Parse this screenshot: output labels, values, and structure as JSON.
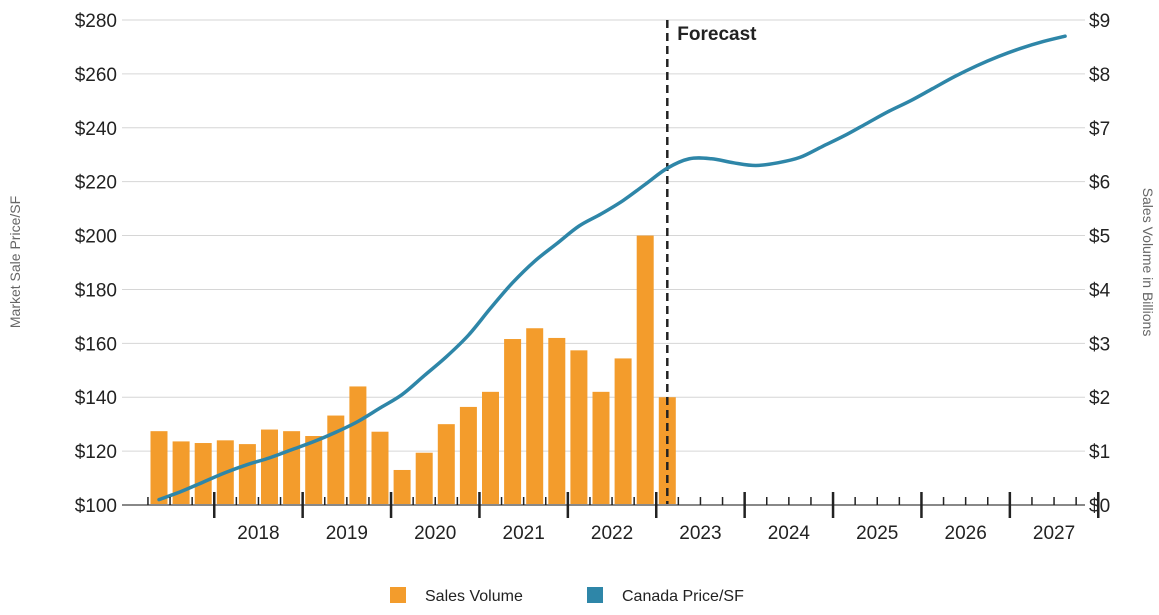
{
  "chart_data": {
    "type": "bar+line",
    "title": "",
    "left_axis": {
      "label": "Market Sale Price/SF",
      "range": [
        100,
        280
      ],
      "ticks": [
        100,
        120,
        140,
        160,
        180,
        200,
        220,
        240,
        260,
        280
      ],
      "tick_labels": [
        "$100",
        "$120",
        "$140",
        "$160",
        "$180",
        "$200",
        "$220",
        "$240",
        "$260",
        "$280"
      ]
    },
    "right_axis": {
      "label": "Sales Volume in Billions",
      "range": [
        0,
        9
      ],
      "ticks": [
        0,
        1,
        2,
        3,
        4,
        5,
        6,
        7,
        8,
        9
      ],
      "tick_labels": [
        "$0",
        "$1",
        "$2",
        "$3",
        "$4",
        "$5",
        "$6",
        "$7",
        "$8",
        "$9"
      ]
    },
    "x_axis": {
      "year_labels": [
        "2018",
        "2019",
        "2020",
        "2021",
        "2022",
        "2023",
        "2024",
        "2025",
        "2026",
        "2027"
      ]
    },
    "grid": true,
    "forecast": {
      "label": "Forecast",
      "starts_at": "2023 Q1"
    },
    "legend": {
      "position": "bottom",
      "items": [
        {
          "name": "Sales Volume",
          "color": "#F39C2C"
        },
        {
          "name": "Canada Price/SF",
          "color": "#2E86A8"
        }
      ]
    },
    "series": [
      {
        "name": "Sales Volume",
        "type": "bar",
        "axis": "right",
        "unit": "billions",
        "color": "#F39C2C",
        "quarters": [
          "2017 Q2",
          "2017 Q3",
          "2017 Q4",
          "2018 Q1",
          "2018 Q2",
          "2018 Q3",
          "2018 Q4",
          "2019 Q1",
          "2019 Q2",
          "2019 Q3",
          "2019 Q4",
          "2020 Q1",
          "2020 Q2",
          "2020 Q3",
          "2020 Q4",
          "2021 Q1",
          "2021 Q2",
          "2021 Q3",
          "2021 Q4",
          "2022 Q1",
          "2022 Q2",
          "2022 Q3",
          "2022 Q4",
          "2023 Q1"
        ],
        "values": [
          1.37,
          1.18,
          1.15,
          1.2,
          1.13,
          1.4,
          1.37,
          1.28,
          1.66,
          2.2,
          1.36,
          0.65,
          0.97,
          1.5,
          1.82,
          2.1,
          3.08,
          3.28,
          3.1,
          2.87,
          2.1,
          2.72,
          5.0,
          2.0
        ]
      },
      {
        "name": "Canada Price/SF",
        "type": "line",
        "axis": "left",
        "unit": "$/SF",
        "color": "#2E86A8",
        "quarters": [
          "2017 Q2",
          "2017 Q3",
          "2017 Q4",
          "2018 Q1",
          "2018 Q2",
          "2018 Q3",
          "2018 Q4",
          "2019 Q1",
          "2019 Q2",
          "2019 Q3",
          "2019 Q4",
          "2020 Q1",
          "2020 Q2",
          "2020 Q3",
          "2020 Q4",
          "2021 Q1",
          "2021 Q2",
          "2021 Q3",
          "2021 Q4",
          "2022 Q1",
          "2022 Q2",
          "2022 Q3",
          "2022 Q4",
          "2023 Q1",
          "2023 Q2",
          "2023 Q3",
          "2023 Q4",
          "2024 Q1",
          "2024 Q2",
          "2024 Q3",
          "2024 Q4",
          "2025 Q1",
          "2025 Q2",
          "2025 Q3",
          "2025 Q4",
          "2026 Q1",
          "2026 Q2",
          "2026 Q3",
          "2026 Q4",
          "2027 Q1",
          "2027 Q2",
          "2027 Q3"
        ],
        "values": [
          102,
          105,
          108.5,
          112,
          115,
          117.5,
          120.5,
          123.5,
          127,
          131,
          136,
          141,
          148,
          155,
          163,
          173,
          182.5,
          190.5,
          197,
          203.5,
          208,
          213,
          219,
          225,
          228.5,
          228.5,
          227,
          226,
          227,
          229,
          233,
          237,
          241.5,
          246,
          250,
          254.5,
          259,
          263,
          266.5,
          269.5,
          272,
          274
        ]
      }
    ]
  }
}
